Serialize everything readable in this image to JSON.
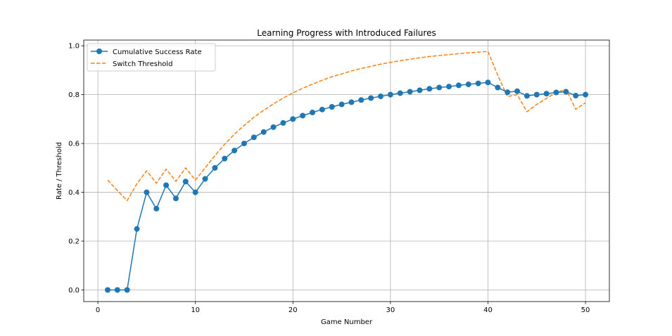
{
  "chart_data": {
    "type": "line",
    "title": "Learning Progress with Introduced Failures",
    "xlabel": "Game Number",
    "ylabel": "Rate / Threshold",
    "xlim": [
      -1.45,
      52.45
    ],
    "ylim": [
      -0.0475,
      1.0235
    ],
    "xticks": [
      0,
      10,
      20,
      30,
      40,
      50
    ],
    "yticks": [
      0.0,
      0.2,
      0.4,
      0.6,
      0.8,
      1.0
    ],
    "xtick_labels": [
      "0",
      "10",
      "20",
      "30",
      "40",
      "50"
    ],
    "ytick_labels": [
      "0.0",
      "0.2",
      "0.4",
      "0.6",
      "0.8",
      "1.0"
    ],
    "grid": true,
    "legend_position": "top-left",
    "x": [
      1,
      2,
      3,
      4,
      5,
      6,
      7,
      8,
      9,
      10,
      11,
      12,
      13,
      14,
      15,
      16,
      17,
      18,
      19,
      20,
      21,
      22,
      23,
      24,
      25,
      26,
      27,
      28,
      29,
      30,
      31,
      32,
      33,
      34,
      35,
      36,
      37,
      38,
      39,
      40,
      41,
      42,
      43,
      44,
      45,
      46,
      47,
      48,
      49,
      50
    ],
    "series": [
      {
        "name": "Cumulative Success Rate",
        "color": "#1f77b4",
        "style": "solid",
        "marker": "circle",
        "values": [
          0.0,
          0.0,
          0.0,
          0.25,
          0.4,
          0.333,
          0.429,
          0.375,
          0.444,
          0.4,
          0.455,
          0.5,
          0.538,
          0.571,
          0.6,
          0.625,
          0.647,
          0.667,
          0.684,
          0.7,
          0.714,
          0.727,
          0.739,
          0.75,
          0.76,
          0.769,
          0.778,
          0.786,
          0.793,
          0.8,
          0.806,
          0.812,
          0.818,
          0.824,
          0.829,
          0.833,
          0.838,
          0.842,
          0.846,
          0.85,
          0.829,
          0.81,
          0.814,
          0.795,
          0.8,
          0.804,
          0.809,
          0.812,
          0.796,
          0.8
        ]
      },
      {
        "name": "Switch Threshold",
        "color": "#ff7f0e",
        "style": "dashed",
        "marker": "none",
        "values": [
          0.45,
          0.407,
          0.366,
          0.435,
          0.488,
          0.437,
          0.495,
          0.445,
          0.5,
          0.45,
          0.5,
          0.55,
          0.597,
          0.638,
          0.674,
          0.707,
          0.736,
          0.762,
          0.786,
          0.807,
          0.826,
          0.843,
          0.859,
          0.873,
          0.885,
          0.897,
          0.907,
          0.916,
          0.925,
          0.932,
          0.939,
          0.945,
          0.951,
          0.956,
          0.96,
          0.964,
          0.968,
          0.971,
          0.974,
          0.977,
          0.88,
          0.792,
          0.8,
          0.73,
          0.76,
          0.785,
          0.808,
          0.822,
          0.74,
          0.767
        ]
      }
    ]
  }
}
